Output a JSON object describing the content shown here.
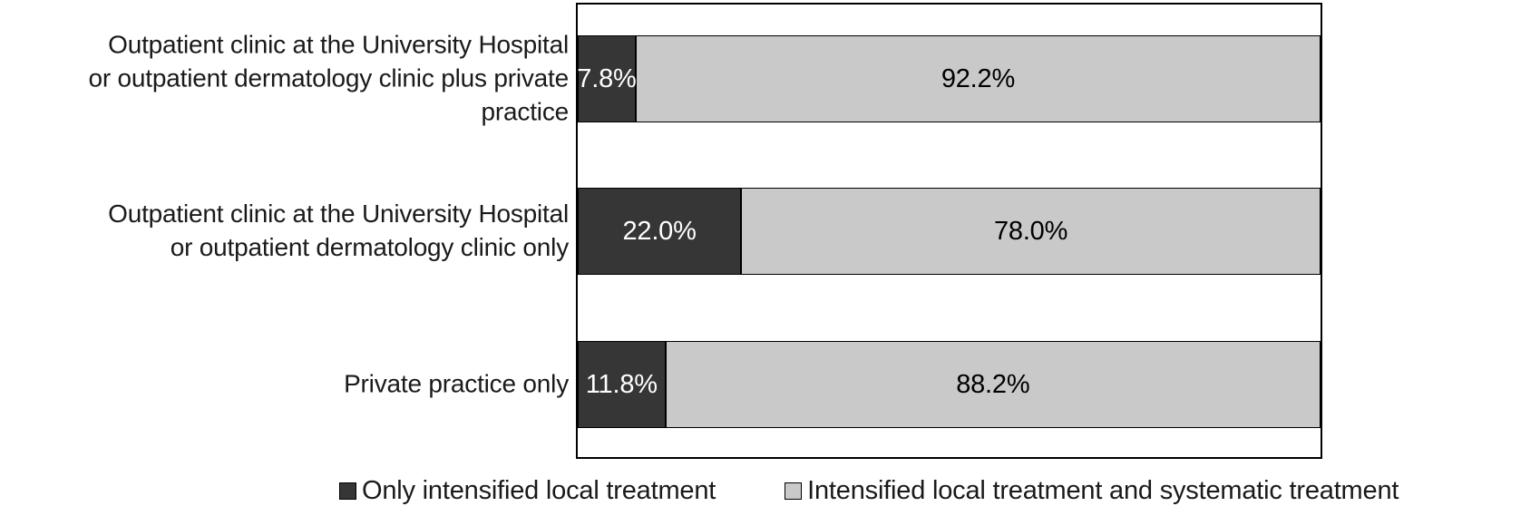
{
  "chart_data": {
    "type": "bar",
    "orientation": "horizontal",
    "stacked": true,
    "value_unit": "percent",
    "xlim": [
      0,
      100
    ],
    "grid": false,
    "axes_visible": false,
    "legend_position": "bottom",
    "background_color": "#ffffff",
    "plot_border_color": "#000000",
    "categories": [
      "Outpatient clinic at the University Hospital or outpatient dermatology clinic plus private practice",
      "Outpatient clinic at the University Hospital or outpatient dermatology clinic only",
      "Private practice only"
    ],
    "category_lines": [
      [
        "Outpatient clinic at the University Hospital",
        "or outpatient dermatology clinic plus private",
        "practice"
      ],
      [
        "Outpatient clinic at the University Hospital",
        "or outpatient dermatology clinic only"
      ],
      [
        "Private practice only"
      ]
    ],
    "series": [
      {
        "name": "Only intensified local treatment",
        "color": "#363636",
        "border_color": "#000000",
        "label_color": "#ffffff",
        "values": [
          7.8,
          22.0,
          11.8
        ],
        "labels": [
          "7.8%",
          "22.0%",
          "11.8%"
        ]
      },
      {
        "name": "Intensified local treatment and systematic treatment",
        "color": "#c9c9c9",
        "border_color": "#000000",
        "label_color": "#000000",
        "values": [
          92.2,
          78.0,
          88.2
        ],
        "labels": [
          "92.2%",
          "78.0%",
          "88.2%"
        ]
      }
    ]
  }
}
